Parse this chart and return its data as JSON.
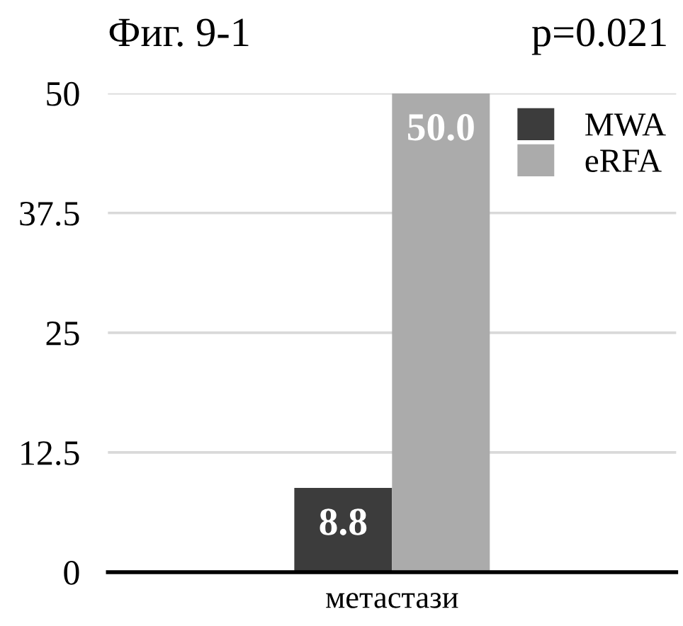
{
  "chart_data": {
    "type": "bar",
    "title": "Фиг. 9-1",
    "annotations": [
      "p=0.021"
    ],
    "categories": [
      "метастази"
    ],
    "series": [
      {
        "name": "MWA",
        "color": "#3c3c3c",
        "values": [
          8.8
        ],
        "value_labels": [
          "8.8"
        ]
      },
      {
        "name": "eRFA",
        "color": "#ababab",
        "values": [
          50.0
        ],
        "value_labels": [
          "50.0"
        ]
      }
    ],
    "ylim": [
      0,
      50
    ],
    "yticks": [
      0,
      12.5,
      25,
      37.5,
      50
    ],
    "grid": "y",
    "legend": "top right"
  }
}
